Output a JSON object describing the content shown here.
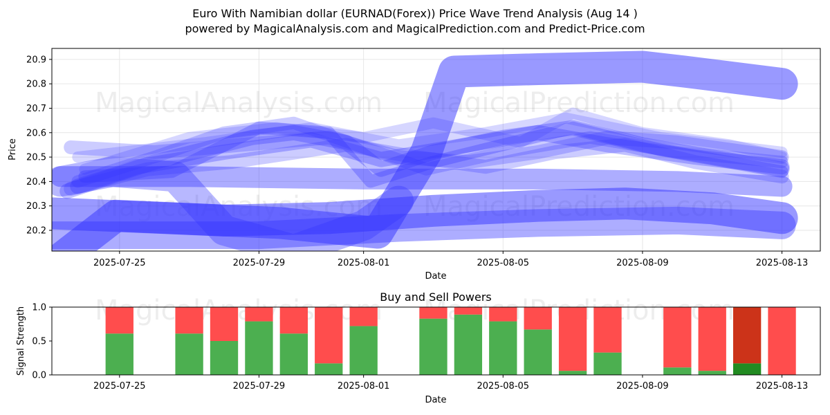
{
  "title_line1": "Euro With Namibian dollar (EURNAD(Forex)) Price Wave Trend Analysis (Aug 14 )",
  "title_line2": "powered by MagicalAnalysis.com and MagicalPrediction.com and Predict-Price.com",
  "watermarks": [
    "MagicalAnalysis.com",
    "MagicalPrediction.com"
  ],
  "colors": {
    "wave": "#3333ff",
    "buy": "#4caf50",
    "sell": "#ff4d4d",
    "sell_dark": "#cc3319",
    "buy_dark": "#228b22"
  },
  "chart_data": [
    {
      "type": "line",
      "title": "",
      "xlabel": "Date",
      "ylabel": "Price",
      "x_ticks": [
        "2025-07-25",
        "2025-07-29",
        "2025-08-01",
        "2025-08-05",
        "2025-08-09",
        "2025-08-13"
      ],
      "y_ticks": [
        "20.2",
        "20.3",
        "20.4",
        "20.5",
        "20.6",
        "20.7",
        "20.8",
        "20.9"
      ],
      "ylim": [
        20.115,
        20.945
      ],
      "x_start": "2025-07-23",
      "grid": true,
      "series": [
        {
          "name": "wave-main-up",
          "width": 46,
          "opacity": 0.5,
          "points": [
            [
              0.0,
              20.05
            ],
            [
              1.9,
              20.26
            ],
            [
              6.6,
              20.23
            ],
            [
              9.4,
              20.19
            ],
            [
              10.8,
              20.52
            ],
            [
              11.6,
              20.85
            ],
            [
              14.0,
              20.86
            ],
            [
              17.0,
              20.87
            ],
            [
              18.2,
              20.85
            ],
            [
              21.0,
              20.8
            ]
          ]
        },
        {
          "name": "wave-low-1",
          "width": 46,
          "opacity": 0.5,
          "points": [
            [
              0.0,
              20.27
            ],
            [
              5.0,
              20.24
            ],
            [
              8.0,
              20.25
            ],
            [
              11.0,
              20.28
            ],
            [
              14.0,
              20.3
            ],
            [
              16.5,
              20.31
            ],
            [
              19.0,
              20.29
            ],
            [
              21.0,
              20.25
            ]
          ]
        },
        {
          "name": "wave-low-2",
          "width": 40,
          "opacity": 0.4,
          "points": [
            [
              0.0,
              20.18
            ],
            [
              6.0,
              20.18
            ],
            [
              10.0,
              20.21
            ],
            [
              14.0,
              20.23
            ],
            [
              18.0,
              20.24
            ],
            [
              21.0,
              20.22
            ]
          ]
        },
        {
          "name": "wave-low-3",
          "width": 30,
          "opacity": 0.4,
          "points": [
            [
              0.3,
              20.42
            ],
            [
              4.0,
              20.42
            ],
            [
              9.0,
              20.41
            ],
            [
              14.0,
              20.41
            ],
            [
              18.0,
              20.4
            ],
            [
              21.0,
              20.38
            ]
          ]
        },
        {
          "name": "wave-cross",
          "width": 44,
          "opacity": 0.35,
          "points": [
            [
              0.3,
              20.4
            ],
            [
              1.8,
              20.44
            ],
            [
              3.6,
              20.42
            ],
            [
              5.0,
              20.2
            ],
            [
              7.0,
              20.12
            ],
            [
              9.0,
              20.22
            ],
            [
              10.0,
              20.32
            ]
          ]
        },
        {
          "name": "wave-mid-1",
          "width": 22,
          "opacity": 0.3,
          "points": [
            [
              0.8,
              20.38
            ],
            [
              2.5,
              20.46
            ],
            [
              5.0,
              20.52
            ],
            [
              7.5,
              20.57
            ],
            [
              9.5,
              20.49
            ],
            [
              12.0,
              20.55
            ],
            [
              14.0,
              20.6
            ],
            [
              16.0,
              20.55
            ],
            [
              18.5,
              20.5
            ],
            [
              21.0,
              20.46
            ]
          ]
        },
        {
          "name": "wave-mid-2",
          "width": 22,
          "opacity": 0.3,
          "points": [
            [
              0.5,
              20.36
            ],
            [
              3.0,
              20.48
            ],
            [
              5.8,
              20.58
            ],
            [
              7.0,
              20.6
            ],
            [
              8.5,
              20.56
            ],
            [
              9.5,
              20.45
            ],
            [
              11.0,
              20.52
            ],
            [
              13.0,
              20.58
            ],
            [
              15.0,
              20.62
            ],
            [
              17.0,
              20.55
            ],
            [
              19.0,
              20.5
            ],
            [
              21.0,
              20.45
            ]
          ]
        },
        {
          "name": "wave-mid-3",
          "width": 18,
          "opacity": 0.3,
          "points": [
            [
              1.0,
              20.42
            ],
            [
              3.5,
              20.44
            ],
            [
              6.0,
              20.62
            ],
            [
              8.0,
              20.6
            ],
            [
              9.2,
              20.4
            ],
            [
              11.0,
              20.48
            ],
            [
              13.0,
              20.55
            ],
            [
              15.0,
              20.62
            ],
            [
              17.5,
              20.53
            ],
            [
              21.0,
              20.44
            ]
          ]
        },
        {
          "name": "wave-mid-4",
          "width": 20,
          "opacity": 0.25,
          "points": [
            [
              0.6,
              20.54
            ],
            [
              3.0,
              20.52
            ],
            [
              5.5,
              20.55
            ],
            [
              8.0,
              20.58
            ],
            [
              10.0,
              20.5
            ],
            [
              12.0,
              20.48
            ],
            [
              14.0,
              20.52
            ],
            [
              16.0,
              20.58
            ],
            [
              18.0,
              20.56
            ],
            [
              21.0,
              20.5
            ]
          ]
        },
        {
          "name": "wave-mid-5",
          "width": 18,
          "opacity": 0.25,
          "points": [
            [
              0.8,
              20.4
            ],
            [
              3.0,
              20.5
            ],
            [
              5.0,
              20.6
            ],
            [
              7.0,
              20.64
            ],
            [
              9.0,
              20.54
            ],
            [
              10.8,
              20.45
            ],
            [
              13.0,
              20.52
            ],
            [
              15.5,
              20.58
            ],
            [
              18.0,
              20.52
            ],
            [
              21.0,
              20.48
            ]
          ]
        },
        {
          "name": "wave-mid-6",
          "width": 20,
          "opacity": 0.25,
          "points": [
            [
              0.6,
              20.37
            ],
            [
              2.8,
              20.45
            ],
            [
              5.2,
              20.48
            ],
            [
              8.5,
              20.55
            ],
            [
              10.5,
              20.5
            ],
            [
              12.5,
              20.46
            ],
            [
              14.5,
              20.52
            ],
            [
              16.5,
              20.55
            ],
            [
              18.5,
              20.48
            ],
            [
              21.0,
              20.42
            ]
          ]
        },
        {
          "name": "wave-upper-1",
          "width": 16,
          "opacity": 0.2,
          "points": [
            [
              1.0,
              20.45
            ],
            [
              4.0,
              20.58
            ],
            [
              6.5,
              20.62
            ],
            [
              9.0,
              20.58
            ],
            [
              11.0,
              20.64
            ],
            [
              13.5,
              20.56
            ],
            [
              15.0,
              20.68
            ],
            [
              17.0,
              20.6
            ],
            [
              19.5,
              20.55
            ],
            [
              21.0,
              20.5
            ]
          ]
        },
        {
          "name": "wave-upper-2",
          "width": 16,
          "opacity": 0.2,
          "points": [
            [
              0.8,
              20.5
            ],
            [
              4.5,
              20.56
            ],
            [
              7.5,
              20.62
            ],
            [
              10.0,
              20.55
            ],
            [
              12.5,
              20.6
            ],
            [
              14.8,
              20.66
            ],
            [
              17.5,
              20.58
            ],
            [
              21.0,
              20.52
            ]
          ]
        }
      ]
    },
    {
      "type": "bar",
      "title": "Buy and Sell Powers",
      "xlabel": "Date",
      "ylabel": "Signal Strength",
      "x_ticks": [
        "2025-07-25",
        "2025-07-29",
        "2025-08-01",
        "2025-08-05",
        "2025-08-09",
        "2025-08-13"
      ],
      "y_ticks": [
        "0.0",
        "0.5",
        "1.0"
      ],
      "ylim": [
        0,
        1
      ],
      "x_start": "2025-07-23",
      "categories": [
        "2025-07-25",
        "2025-07-27",
        "2025-07-28",
        "2025-07-29",
        "2025-07-30",
        "2025-07-31",
        "2025-08-01",
        "2025-08-03",
        "2025-08-04",
        "2025-08-05",
        "2025-08-06",
        "2025-08-07",
        "2025-08-08",
        "2025-08-10",
        "2025-08-11",
        "2025-08-12",
        "2025-08-13"
      ],
      "series": [
        {
          "name": "Buy",
          "values": [
            0.61,
            0.61,
            0.5,
            0.79,
            0.61,
            0.17,
            0.72,
            0.83,
            0.89,
            0.79,
            0.67,
            0.06,
            0.33,
            0.11,
            0.06,
            0.17,
            0.0
          ]
        },
        {
          "name": "Sell",
          "values": [
            0.39,
            0.39,
            0.5,
            0.21,
            0.39,
            0.83,
            0.28,
            0.17,
            0.11,
            0.21,
            0.33,
            0.94,
            0.67,
            0.89,
            0.94,
            0.83,
            1.0
          ]
        }
      ],
      "highlight_index": 15
    }
  ]
}
